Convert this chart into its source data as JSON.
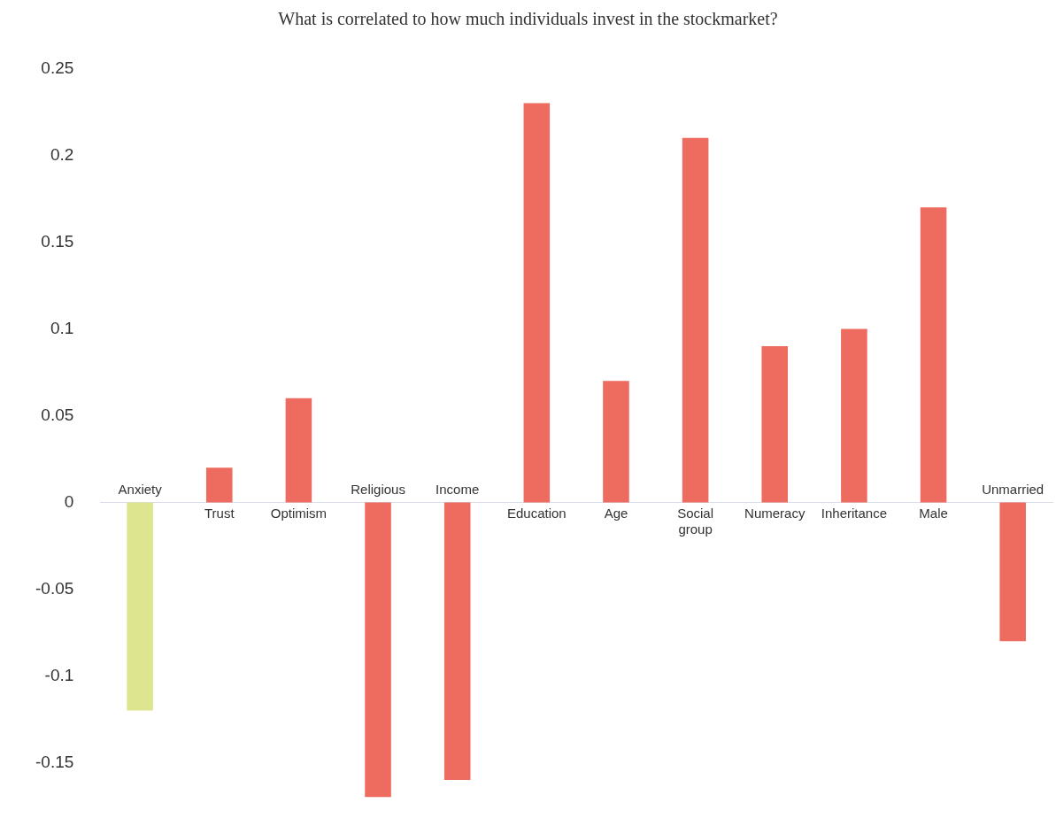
{
  "chart_data": {
    "type": "bar",
    "title": "What is correlated to how much individuals invest in the stockmarket?",
    "categories": [
      "Anxiety",
      "Trust",
      "Optimism",
      "Religious",
      "Income",
      "Education",
      "Age",
      "Social group",
      "Numeracy",
      "Inheritance",
      "Male",
      "Unmarried"
    ],
    "values": [
      -0.12,
      0.02,
      0.06,
      -0.17,
      -0.16,
      0.23,
      0.07,
      0.21,
      0.09,
      0.1,
      0.17,
      -0.08
    ],
    "colors": [
      "#dde68f",
      "#ee6b5f",
      "#ee6b5f",
      "#ee6b5f",
      "#ee6b5f",
      "#ee6b5f",
      "#ee6b5f",
      "#ee6b5f",
      "#ee6b5f",
      "#ee6b5f",
      "#ee6b5f",
      "#ee6b5f"
    ],
    "ylim": [
      -0.17,
      0.25
    ],
    "yticks": [
      0.25,
      0.2,
      0.15,
      0.1,
      0.05,
      0,
      -0.05,
      -0.1,
      -0.15
    ],
    "grid": false,
    "legend": false
  }
}
